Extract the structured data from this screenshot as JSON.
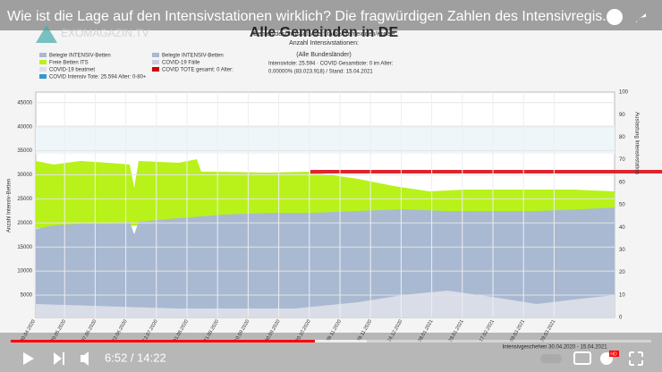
{
  "player": {
    "title": "Wie ist die Lage auf den Intensivstationen wirklich? Die fragwürdigen Zahlen des Intensivregis...",
    "time": "6:52 / 14:22",
    "logo": "EXOMAGAZIN.TV",
    "quality": "HD"
  },
  "chart": {
    "heading": "Alle Gemeinden in DE",
    "key": "Gemeindeschlüssel: Alle Städte/Gemeinden/Kreise",
    "count": "Anzahl Intensivstationen:",
    "states": "(Alle Bundesländer)",
    "deaths": "Intensivtote: 25.594 · COVID Gesamttote: 0 im Alter:",
    "share": "0.00000% (83.023.918) / Stand: 15.04.2021",
    "legend": [
      "Belegte INTENSIV-Betten",
      "Belegte INTENSIV-Betten",
      "Freie Betten ITS",
      "COVID-19 Fälle",
      "COVID-19 beatmet",
      "COVID TOTE gesamt: 0 Alter:",
      "COVID Intensiv Tote: 25.594 Alter: 0-80+"
    ],
    "y_title": "Anzahl Intensiv-Betten",
    "y2_title": "Auslastung Intensivstation",
    "yticks": [
      "5000",
      "10000",
      "15000",
      "20000",
      "25000",
      "30000",
      "35000",
      "40000",
      "45000"
    ],
    "y2ticks": [
      "0",
      "10",
      "20",
      "30",
      "40",
      "50",
      "60",
      "70",
      "80",
      "90",
      "100"
    ],
    "dates": [
      "30.04.2020",
      "20.05.2020",
      "07.06.2020",
      "22.06.2020",
      "12.07.2020",
      "01.08.2020",
      "21.08.2020",
      "10.09.2020",
      "30.09.2020",
      "20.10.2020",
      "09.11.2020",
      "29.11.2020",
      "16.12.2020",
      "08.01.2021",
      "28.01.2021",
      "17.02.2021",
      "09.03.2021",
      "29.03.2021"
    ],
    "footer": "Intensivgeschehen 30.04.2020 - 15.04.2021"
  }
}
